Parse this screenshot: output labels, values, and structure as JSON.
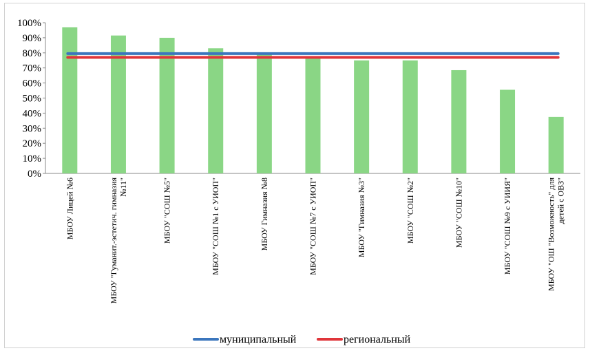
{
  "chart_data": {
    "type": "bar",
    "categories": [
      [
        "МБОУ Лицей №6"
      ],
      [
        "МБОУ \"Гуманит.-эстетич. гимназия",
        "№11\""
      ],
      [
        "МБОУ \"СОШ №5\""
      ],
      [
        "МБОУ \"СОШ №1 с УИОП\""
      ],
      [
        "МБОУ Гимназия №8"
      ],
      [
        "МБОУ \"СОШ №7 с УИОП\""
      ],
      [
        "МБОУ \"Гимназия №3\""
      ],
      [
        "МБОУ \"СОШ №2\""
      ],
      [
        "МБОУ \"СОШ №10\""
      ],
      [
        "МБОУ \"СОШ №9 с УИИЯ\""
      ],
      [
        "МБОУ \"ОШ \"Возможность\" для",
        "детей с ОВЗ\""
      ]
    ],
    "values": [
      97,
      91.5,
      90,
      83,
      80,
      77,
      75,
      75,
      68.5,
      55.5,
      37.5
    ],
    "bar_color": "#8ad685",
    "lines": [
      {
        "name": "муниципальный",
        "value": 79.5,
        "color": "#3b76bd"
      },
      {
        "name": "региональный",
        "value": 77,
        "color": "#e0353a"
      }
    ],
    "yticks": [
      "0%",
      "10%",
      "20%",
      "30%",
      "40%",
      "50%",
      "60%",
      "70%",
      "80%",
      "90%",
      "100%"
    ],
    "ylim": [
      0,
      100
    ],
    "grid": false,
    "legend": "bottom"
  }
}
